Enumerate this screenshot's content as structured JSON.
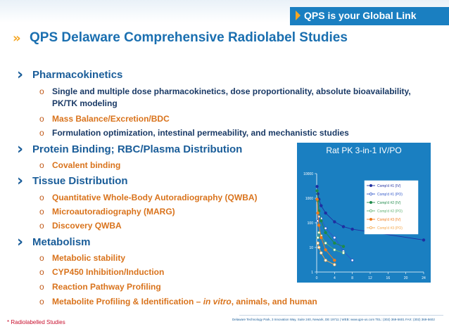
{
  "header": {
    "tagline": "QPS is your Global Link"
  },
  "title": "QPS Delaware Comprehensive Radiolabel Studies",
  "sections": [
    {
      "heading": "Pharmacokinetics",
      "items": [
        {
          "lines": [
            "Single and multiple dose pharmacokinetics, dose proportionality, absolute bioavailability,",
            "PK/TK modeling"
          ],
          "color": "dark"
        },
        {
          "text": "Mass Balance/Excretion/BDC",
          "color": "orange"
        },
        {
          "text": "Formulation optimization, intestinal permeability, and mechanistic studies",
          "color": "dark"
        }
      ]
    },
    {
      "heading": "Protein Binding; RBC/Plasma Distribution",
      "items": [
        {
          "text": "Covalent binding",
          "color": "orange"
        }
      ]
    },
    {
      "heading": "Tissue Distribution",
      "items": [
        {
          "text": "Quantitative Whole-Body Autoradiography (QWBA)",
          "color": "orange"
        },
        {
          "text": "Microautoradiography (MARG)",
          "color": "orange"
        },
        {
          "text": "Discovery QWBA",
          "color": "orange"
        }
      ]
    },
    {
      "heading": "Metabolism",
      "items": [
        {
          "text": "Metabolic stability",
          "color": "orange"
        },
        {
          "text": "CYP450 Inhibition/Induction",
          "color": "orange"
        },
        {
          "text": "Reaction Pathway Profiling",
          "color": "orange"
        },
        {
          "parts": [
            "Metabolite Profiling & Identification – ",
            "in vitro",
            ", animals, and human"
          ],
          "color": "orange"
        }
      ]
    }
  ],
  "footnote": "* Radiolabelled Studies",
  "footer": {
    "address": "Delaware Technology Park, 3 Innovation Way, Suite 240, Newark, DE 19711  |  WEB: www.qps-us.com   TEL: (302) 369-5601   FAX: (302) 369-5602"
  },
  "colors": {
    "heading": "#1a5d99",
    "orange": "#d9731c",
    "dark": "#1a3a66",
    "accent": "#f5a623",
    "blue": "#1a7fc1"
  },
  "chart_data": {
    "type": "line",
    "title": "Rat PK 3-in-1 IV/PO",
    "y_scale": "log",
    "ylim": [
      1,
      10000
    ],
    "xlim": [
      0,
      24
    ],
    "x_ticks": [
      "0",
      "4",
      "8",
      "12",
      "16",
      "20",
      "24"
    ],
    "y_ticks": [
      "1",
      "10",
      "100",
      "1000",
      "10000"
    ],
    "series": [
      {
        "name": "Comp'd #1 (IV)",
        "color": "#1f2fa0",
        "marker": "filled",
        "x": [
          0.083,
          0.25,
          0.5,
          1,
          2,
          4,
          6,
          8,
          24
        ],
        "y": [
          3000,
          1500,
          900,
          500,
          250,
          110,
          70,
          55,
          20
        ]
      },
      {
        "name": "Comp'd #1 (PO)",
        "color": "#2f56c8",
        "marker": "open",
        "x": [
          0.25,
          0.5,
          1,
          2,
          4,
          6,
          8
        ],
        "y": [
          120,
          180,
          150,
          60,
          25,
          7,
          3
        ]
      },
      {
        "name": "Comp'd #2 (IV)",
        "color": "#1f8a4a",
        "marker": "filled",
        "x": [
          0.083,
          0.25,
          0.5,
          1,
          2,
          4,
          6
        ],
        "y": [
          2000,
          800,
          300,
          120,
          40,
          15,
          11
        ]
      },
      {
        "name": "Comp'd #2 (PO)",
        "color": "#5fb071",
        "marker": "open",
        "x": [
          0.25,
          0.5,
          1,
          2,
          4,
          6
        ],
        "y": [
          25,
          40,
          30,
          15,
          8,
          6
        ]
      },
      {
        "name": "Comp'd #3 (IV)",
        "color": "#f07a1a",
        "marker": "filled",
        "x": [
          0.083,
          0.25,
          0.5,
          1,
          2,
          4
        ],
        "y": [
          900,
          250,
          80,
          25,
          8,
          3
        ]
      },
      {
        "name": "Comp'd #3 (PO)",
        "color": "#f5a64a",
        "marker": "open",
        "x": [
          0.25,
          0.5,
          1,
          2,
          4
        ],
        "y": [
          15,
          10,
          6,
          3,
          2
        ]
      }
    ]
  }
}
